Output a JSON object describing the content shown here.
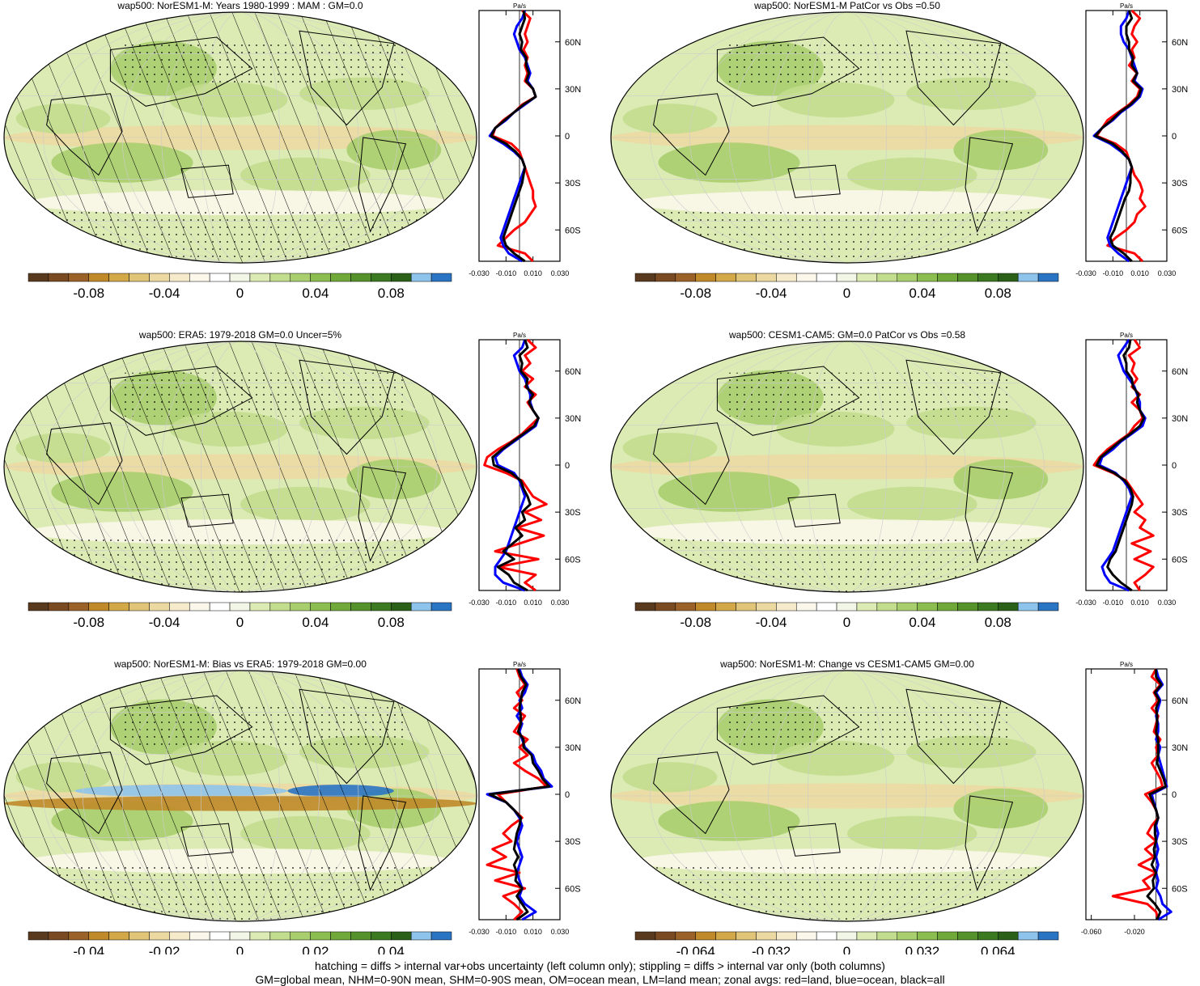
{
  "colors": {
    "palette": [
      "#5a3a1e",
      "#7a4a22",
      "#9a6228",
      "#c08a2a",
      "#d2a848",
      "#e0c478",
      "#ecd9a2",
      "#f5ebcb",
      "#fbf7ea",
      "#ffffff",
      "#f2f6e6",
      "#dcebb4",
      "#c2dd8e",
      "#a8ce6e",
      "#8cbd50",
      "#70a83a",
      "#56922c",
      "#3c7a22",
      "#2a6018",
      "#8ec4ec",
      "#2a74c4"
    ],
    "land_line": "#ff0000",
    "ocean_line": "#0000ff",
    "all_line": "#000000"
  },
  "panels": [
    {
      "title": "wap500: NorESM1-M: Years 1980-1999 : MAM : GM=0.0",
      "hatched": true,
      "colorbar_labels": [
        "-0.08",
        "-0.04",
        "0",
        "0.04",
        "0.08"
      ],
      "zonal_x_labels": [
        "-0.030",
        "-0.010",
        "0.010",
        "0.030"
      ],
      "zonal_unit": "Pa/s",
      "lat_labels": [
        "60N",
        "30N",
        "0",
        "30S",
        "60S"
      ],
      "zonal_profiles": {
        "lat": [
          80,
          75,
          70,
          65,
          60,
          55,
          50,
          45,
          40,
          35,
          30,
          25,
          20,
          15,
          10,
          5,
          0,
          -5,
          -10,
          -15,
          -20,
          -25,
          -30,
          -35,
          -40,
          -45,
          -50,
          -55,
          -60,
          -65,
          -70,
          -75,
          -80
        ],
        "land": [
          0.002,
          0.008,
          0.006,
          0.004,
          0.006,
          0.003,
          0.006,
          0.004,
          0.006,
          0.004,
          0.01,
          0.012,
          0.002,
          -0.004,
          -0.012,
          -0.018,
          -0.02,
          -0.006,
          0.0,
          0.002,
          0.004,
          0.006,
          0.008,
          0.01,
          0.01,
          0.012,
          0.008,
          0.004,
          -0.004,
          -0.01,
          -0.016,
          0.004,
          0.01
        ],
        "ocean": [
          0.004,
          0.002,
          -0.002,
          -0.004,
          -0.002,
          0.0,
          0.004,
          0.006,
          0.008,
          0.006,
          0.01,
          0.012,
          0.004,
          -0.004,
          -0.01,
          -0.018,
          -0.022,
          -0.012,
          -0.004,
          0.002,
          0.004,
          0.002,
          0.0,
          -0.002,
          -0.004,
          -0.006,
          -0.008,
          -0.01,
          -0.012,
          -0.014,
          -0.012,
          -0.008,
          0.002
        ],
        "all": [
          0.003,
          0.004,
          0.002,
          0.0,
          0.002,
          0.001,
          0.005,
          0.005,
          0.007,
          0.005,
          0.01,
          0.012,
          0.003,
          -0.004,
          -0.011,
          -0.018,
          -0.021,
          -0.01,
          -0.003,
          0.002,
          0.004,
          0.003,
          0.002,
          0.0,
          -0.002,
          -0.004,
          -0.006,
          -0.008,
          -0.01,
          -0.012,
          -0.01,
          -0.004,
          0.004
        ]
      }
    },
    {
      "title": "wap500: NorESM1-M PatCor vs Obs =0.50",
      "hatched": false,
      "colorbar_labels": [
        "-0.08",
        "-0.04",
        "0",
        "0.04",
        "0.08"
      ],
      "zonal_x_labels": [
        "-0.030",
        "-0.010",
        "0.010",
        "0.030"
      ],
      "zonal_unit": "Pa/s",
      "lat_labels": [
        "60N",
        "30N",
        "0",
        "30S",
        "60S"
      ],
      "zonal_profiles": {
        "lat": [
          80,
          75,
          70,
          65,
          60,
          55,
          50,
          45,
          40,
          35,
          30,
          25,
          20,
          15,
          10,
          5,
          0,
          -5,
          -10,
          -15,
          -20,
          -25,
          -30,
          -35,
          -40,
          -45,
          -50,
          -55,
          -60,
          -65,
          -70,
          -75,
          -80
        ],
        "land": [
          0.004,
          0.01,
          0.006,
          0.004,
          0.008,
          0.004,
          0.006,
          0.002,
          0.008,
          0.004,
          0.01,
          0.008,
          0.002,
          -0.006,
          -0.014,
          -0.018,
          -0.022,
          -0.008,
          0.0,
          0.002,
          0.004,
          0.006,
          0.01,
          0.012,
          0.01,
          0.014,
          0.008,
          0.006,
          0.0,
          -0.008,
          -0.014,
          0.006,
          0.012
        ],
        "ocean": [
          0.002,
          0.0,
          -0.004,
          -0.004,
          -0.002,
          0.002,
          0.004,
          0.006,
          0.008,
          0.006,
          0.012,
          0.01,
          0.004,
          -0.004,
          -0.01,
          -0.018,
          -0.024,
          -0.012,
          -0.004,
          0.002,
          0.004,
          0.002,
          0.0,
          -0.002,
          -0.004,
          -0.006,
          -0.008,
          -0.01,
          -0.012,
          -0.014,
          -0.012,
          -0.006,
          0.002
        ],
        "all": [
          0.002,
          0.004,
          0.0,
          0.0,
          0.002,
          0.002,
          0.005,
          0.004,
          0.008,
          0.005,
          0.011,
          0.009,
          0.003,
          -0.005,
          -0.011,
          -0.018,
          -0.023,
          -0.01,
          -0.003,
          0.002,
          0.004,
          0.003,
          0.003,
          0.002,
          -0.001,
          -0.003,
          -0.005,
          -0.007,
          -0.009,
          -0.012,
          -0.01,
          -0.002,
          0.004
        ]
      }
    },
    {
      "title": "wap500: ERA5: 1979-2018 GM=0.0 Uncer=5%",
      "hatched": true,
      "colorbar_labels": [
        "-0.08",
        "-0.04",
        "0",
        "0.04",
        "0.08"
      ],
      "zonal_x_labels": [
        "-0.030",
        "-0.010",
        "0.010",
        "0.030"
      ],
      "zonal_unit": "Pa/s",
      "lat_labels": [
        "60N",
        "30N",
        "0",
        "30S",
        "60S"
      ],
      "zonal_profiles": {
        "lat": [
          80,
          75,
          70,
          65,
          60,
          55,
          50,
          45,
          40,
          35,
          30,
          25,
          20,
          15,
          10,
          5,
          0,
          -5,
          -10,
          -15,
          -20,
          -25,
          -30,
          -35,
          -40,
          -45,
          -50,
          -55,
          -60,
          -65,
          -70,
          -75,
          -80
        ],
        "land": [
          0.006,
          0.012,
          0.004,
          0.008,
          0.002,
          0.01,
          0.004,
          0.012,
          0.006,
          0.01,
          0.014,
          0.008,
          0.002,
          -0.006,
          -0.016,
          -0.024,
          -0.026,
          -0.01,
          0.002,
          0.006,
          0.01,
          0.02,
          0.004,
          0.016,
          -0.002,
          0.018,
          0.0,
          -0.018,
          0.014,
          -0.016,
          0.012,
          0.004,
          0.012
        ],
        "ocean": [
          0.004,
          0.002,
          -0.004,
          -0.002,
          0.0,
          0.004,
          0.006,
          0.008,
          0.008,
          0.01,
          0.014,
          0.012,
          0.004,
          -0.004,
          -0.012,
          -0.018,
          -0.016,
          -0.004,
          0.0,
          0.002,
          0.004,
          0.002,
          0.0,
          -0.002,
          -0.004,
          -0.006,
          -0.008,
          -0.01,
          -0.014,
          -0.018,
          -0.018,
          -0.012,
          0.004
        ],
        "all": [
          0.004,
          0.006,
          0.0,
          0.002,
          0.001,
          0.006,
          0.005,
          0.01,
          0.007,
          0.01,
          0.014,
          0.011,
          0.003,
          -0.005,
          -0.013,
          -0.02,
          -0.019,
          -0.006,
          0.001,
          0.003,
          0.006,
          0.008,
          0.002,
          0.004,
          -0.003,
          0.002,
          -0.005,
          -0.012,
          -0.004,
          -0.016,
          -0.008,
          -0.004,
          0.006
        ]
      }
    },
    {
      "title": "wap500: CESM1-CAM5: GM=0.0 PatCor vs Obs =0.58",
      "hatched": false,
      "colorbar_labels": [
        "-0.08",
        "-0.04",
        "0",
        "0.04",
        "0.08"
      ],
      "zonal_x_labels": [
        "-0.030",
        "-0.010",
        "0.010",
        "0.030"
      ],
      "zonal_unit": "Pa/s",
      "lat_labels": [
        "60N",
        "30N",
        "0",
        "30S",
        "60S"
      ],
      "zonal_profiles": {
        "lat": [
          80,
          75,
          70,
          65,
          60,
          55,
          50,
          45,
          40,
          35,
          30,
          25,
          20,
          15,
          10,
          5,
          0,
          -5,
          -10,
          -15,
          -20,
          -25,
          -30,
          -35,
          -40,
          -45,
          -50,
          -55,
          -60,
          -65,
          -70,
          -75,
          -80
        ],
        "land": [
          0.006,
          0.01,
          0.002,
          0.006,
          0.004,
          0.008,
          0.004,
          0.01,
          0.004,
          0.01,
          0.012,
          0.006,
          0.002,
          -0.006,
          -0.014,
          -0.02,
          -0.024,
          -0.01,
          0.0,
          0.004,
          0.008,
          0.012,
          0.006,
          0.014,
          0.01,
          0.02,
          0.004,
          0.018,
          0.006,
          0.02,
          0.014,
          0.006,
          0.01
        ],
        "ocean": [
          0.002,
          -0.002,
          -0.006,
          -0.004,
          -0.002,
          0.002,
          0.006,
          0.008,
          0.01,
          0.01,
          0.014,
          0.012,
          0.004,
          -0.004,
          -0.01,
          -0.018,
          -0.02,
          -0.008,
          -0.002,
          0.002,
          0.004,
          0.002,
          0.0,
          -0.002,
          -0.004,
          -0.006,
          -0.008,
          -0.01,
          -0.014,
          -0.018,
          -0.016,
          -0.012,
          0.002
        ],
        "all": [
          0.003,
          0.002,
          -0.002,
          0.0,
          0.0,
          0.004,
          0.005,
          0.009,
          0.008,
          0.01,
          0.013,
          0.01,
          0.003,
          -0.005,
          -0.012,
          -0.019,
          -0.022,
          -0.009,
          -0.001,
          0.003,
          0.005,
          0.004,
          0.002,
          0.0,
          -0.002,
          -0.004,
          -0.006,
          -0.008,
          -0.012,
          -0.014,
          -0.01,
          -0.004,
          0.004
        ]
      }
    },
    {
      "title": "wap500: NorESM1-M: Bias vs ERA5: 1979-2018 GM=0.00",
      "hatched": true,
      "colorbar_labels": [
        "-0.04",
        "-0.02",
        "0",
        "0.02",
        "0.04"
      ],
      "zonal_x_labels": [
        "-0.030",
        "-0.010",
        "0.010",
        "0.030"
      ],
      "zonal_unit": "Pa/s",
      "lat_labels": [
        "60N",
        "30N",
        "0",
        "30S",
        "60S"
      ],
      "zonal_profiles": {
        "lat": [
          80,
          75,
          70,
          65,
          60,
          55,
          50,
          45,
          40,
          35,
          30,
          25,
          20,
          15,
          10,
          5,
          0,
          -5,
          -10,
          -15,
          -20,
          -25,
          -30,
          -35,
          -40,
          -45,
          -50,
          -55,
          -60,
          -65,
          -70,
          -75,
          -80
        ],
        "land": [
          -0.002,
          0.0,
          0.004,
          -0.002,
          0.002,
          -0.004,
          0.004,
          0.0,
          -0.004,
          0.006,
          0.0,
          0.006,
          -0.004,
          0.004,
          0.014,
          0.02,
          -0.016,
          -0.01,
          -0.004,
          0.002,
          -0.006,
          -0.012,
          -0.006,
          -0.02,
          -0.01,
          -0.024,
          0.0,
          -0.018,
          0.004,
          -0.012,
          -0.004,
          0.002,
          -0.004
        ],
        "ocean": [
          0.0,
          0.002,
          0.006,
          0.004,
          0.0,
          0.002,
          -0.002,
          0.002,
          0.0,
          0.002,
          0.004,
          0.01,
          0.012,
          0.016,
          0.018,
          0.024,
          -0.024,
          -0.01,
          -0.004,
          0.0,
          0.002,
          0.0,
          -0.002,
          0.0,
          0.002,
          0.0,
          -0.002,
          0.0,
          0.002,
          0.0,
          0.004,
          0.012,
          0.002
        ],
        "all": [
          -0.001,
          0.001,
          0.005,
          0.002,
          0.001,
          0.0,
          0.001,
          0.001,
          -0.001,
          0.003,
          0.003,
          0.009,
          0.01,
          0.014,
          0.017,
          0.022,
          -0.022,
          -0.01,
          -0.004,
          0.001,
          0.0,
          -0.002,
          -0.003,
          -0.004,
          -0.001,
          -0.004,
          -0.002,
          -0.003,
          0.002,
          -0.002,
          0.002,
          0.006,
          -0.002
        ]
      }
    },
    {
      "title": "wap500: NorESM1-M: Change vs CESM1-CAM5 GM=0.00",
      "hatched": false,
      "colorbar_labels": [
        "-0.064",
        "-0.032",
        "0",
        "0.032",
        "0.064"
      ],
      "zonal_x_labels": [
        "-0.060",
        "-0.020"
      ],
      "zonal_unit": "Pa/s",
      "lat_labels": [
        "60N",
        "30N",
        "0",
        "30S",
        "60S"
      ],
      "zonal_profiles": {
        "lat": [
          80,
          75,
          70,
          65,
          60,
          55,
          50,
          45,
          40,
          35,
          30,
          25,
          20,
          15,
          10,
          5,
          0,
          -5,
          -10,
          -15,
          -20,
          -25,
          -30,
          -35,
          -40,
          -45,
          -50,
          -55,
          -60,
          -65,
          -70,
          -75,
          -80
        ],
        "land": [
          0.0,
          -0.004,
          0.004,
          -0.002,
          0.002,
          -0.004,
          0.002,
          0.0,
          -0.002,
          0.004,
          0.0,
          0.002,
          -0.004,
          0.0,
          0.004,
          0.006,
          -0.01,
          -0.004,
          0.0,
          0.002,
          -0.004,
          -0.008,
          0.0,
          -0.01,
          -0.002,
          -0.016,
          0.0,
          -0.012,
          -0.006,
          -0.04,
          -0.008,
          0.0,
          0.002
        ],
        "ocean": [
          0.0,
          0.002,
          0.006,
          0.0,
          0.004,
          0.002,
          0.0,
          0.002,
          0.002,
          0.0,
          0.004,
          0.002,
          0.004,
          0.006,
          0.008,
          0.01,
          -0.004,
          -0.002,
          0.0,
          0.002,
          0.0,
          0.002,
          0.0,
          0.002,
          0.0,
          0.002,
          0.0,
          0.002,
          0.0,
          0.004,
          0.006,
          0.014,
          0.002
        ],
        "all": [
          0.0,
          0.0,
          0.005,
          -0.001,
          0.003,
          0.0,
          0.001,
          0.001,
          0.0,
          0.002,
          0.002,
          0.002,
          0.001,
          0.004,
          0.007,
          0.009,
          -0.006,
          -0.003,
          0.0,
          0.002,
          -0.001,
          -0.001,
          0.0,
          -0.002,
          -0.001,
          -0.004,
          0.0,
          -0.003,
          -0.002,
          -0.008,
          -0.001,
          0.004,
          0.001
        ]
      }
    }
  ],
  "footer": {
    "line1": "hatching = diffs > internal var+obs uncertainty (left column only); stippling = diffs > internal var only (both columns)",
    "line2": "GM=global mean, NHM=0-90N mean, SHM=0-90S mean, OM=ocean mean, LM=land mean; zonal avgs: red=land, blue=ocean, black=all"
  }
}
